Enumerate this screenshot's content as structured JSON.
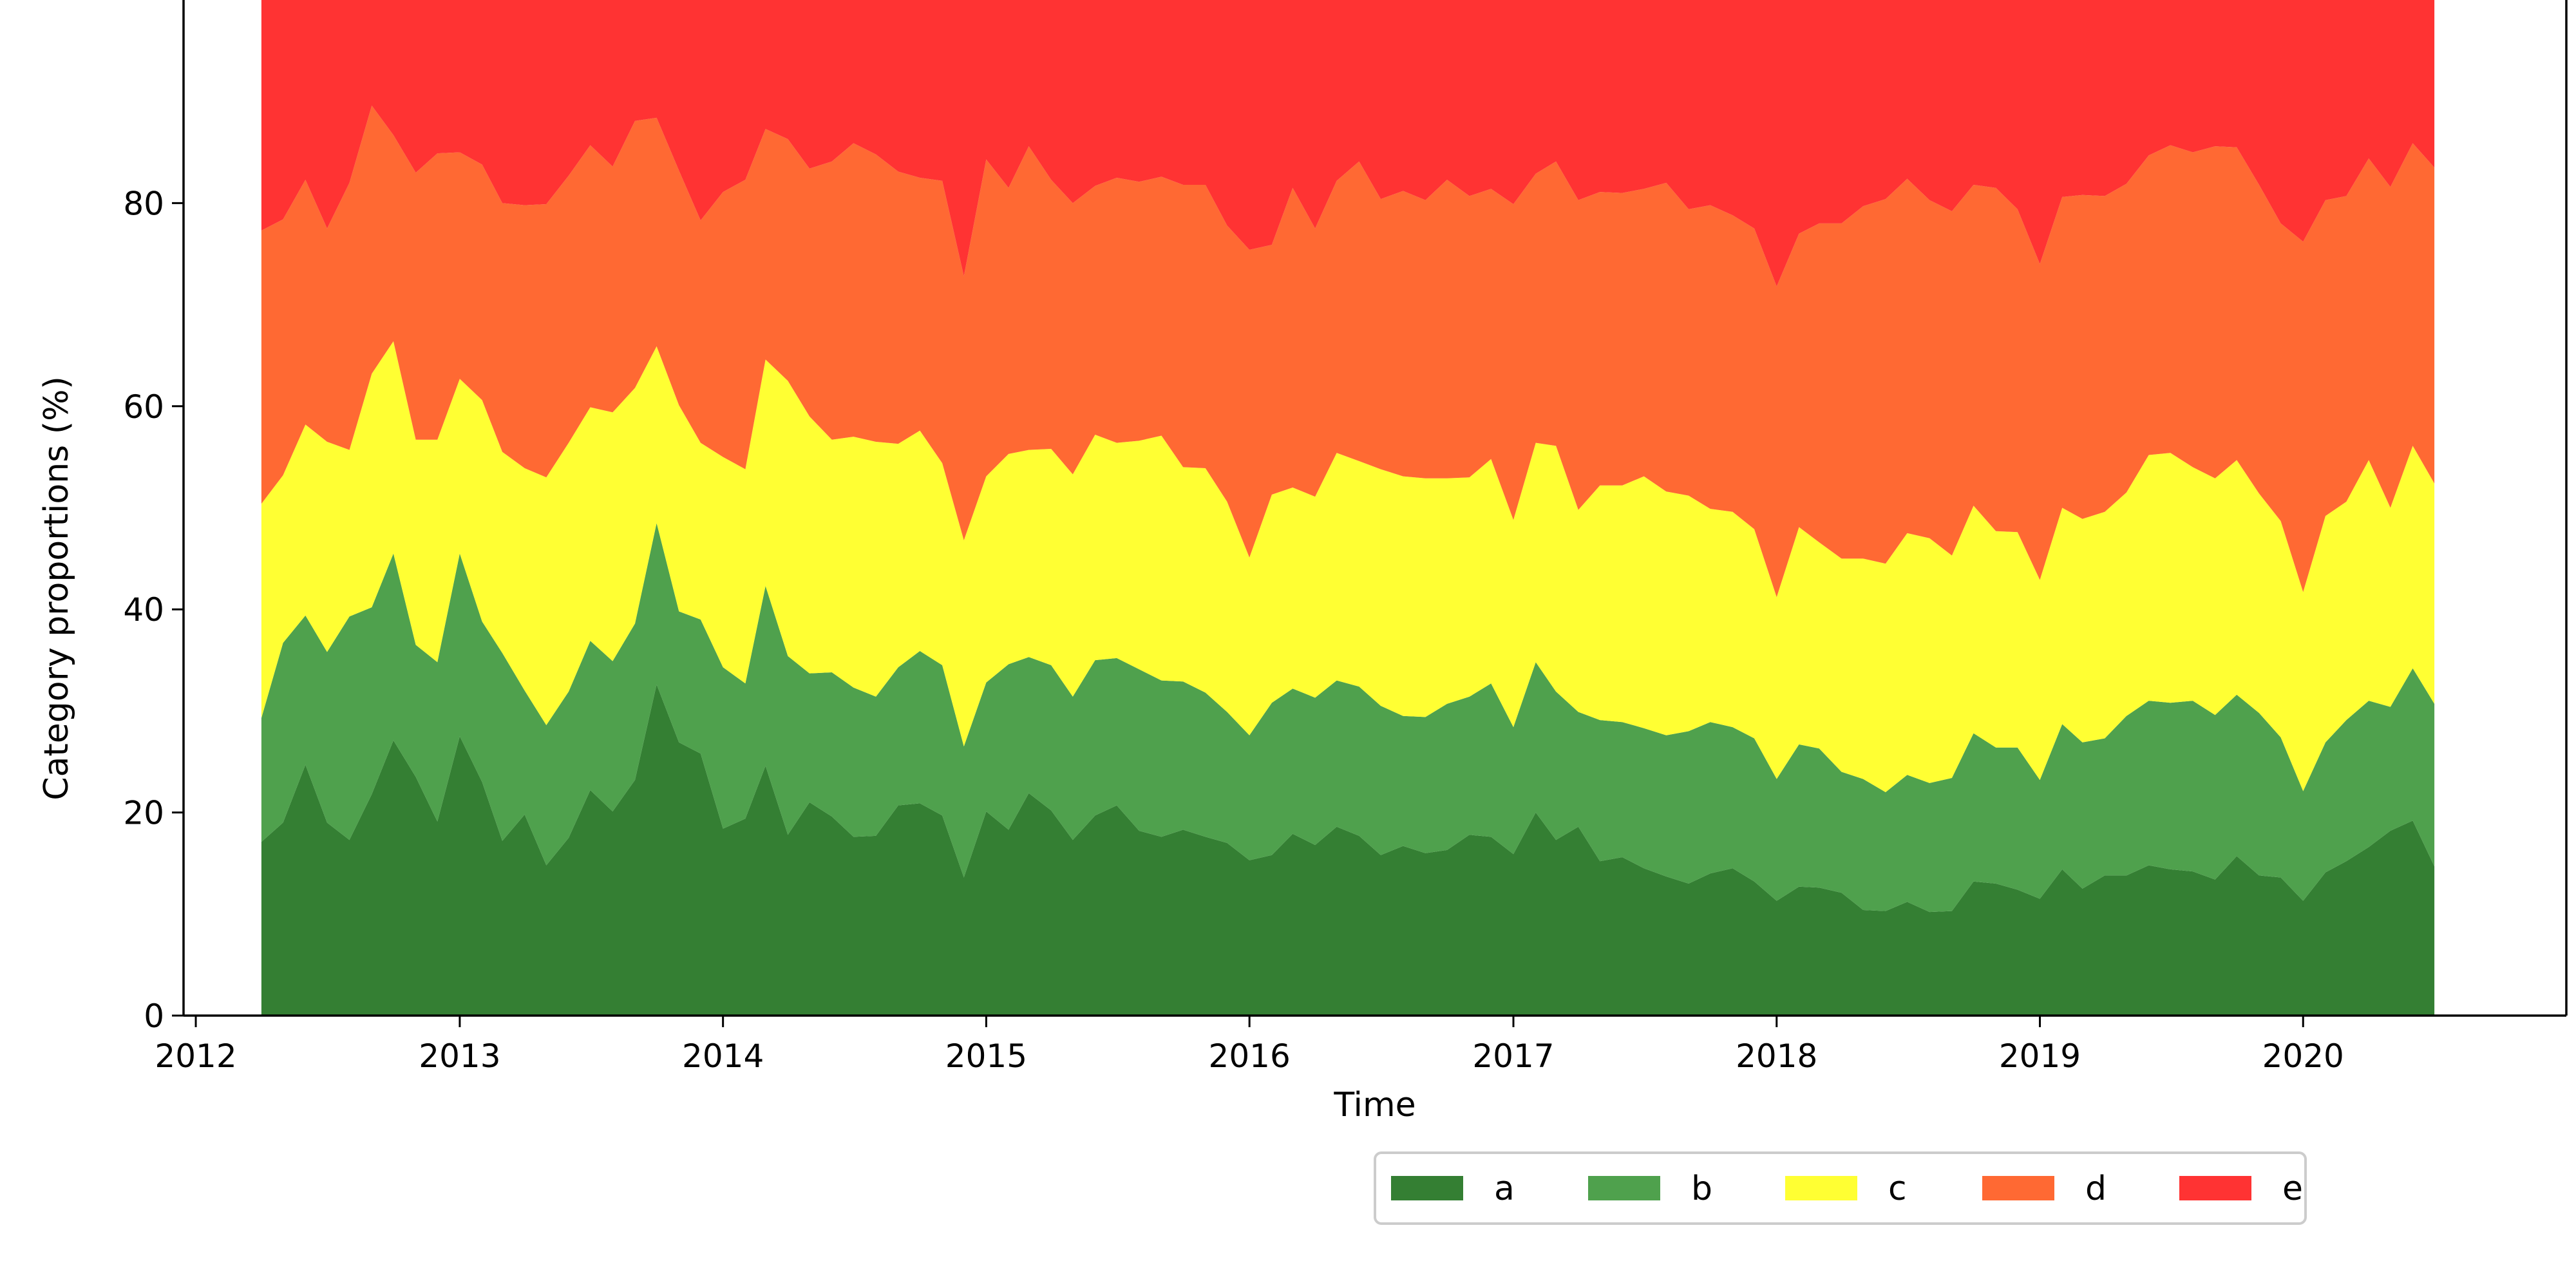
{
  "chart_data": {
    "type": "area",
    "stacked": true,
    "xlabel": "Time",
    "ylabel": "Category proportions (%)",
    "xlim": [
      "2011-12-15",
      "2020-12-31"
    ],
    "ylim": [
      0,
      100
    ],
    "x_ticks": [
      "2012",
      "2013",
      "2014",
      "2015",
      "2016",
      "2017",
      "2018",
      "2019",
      "2020"
    ],
    "y_ticks": [
      0,
      20,
      40,
      60,
      80
    ],
    "grid": false,
    "legend_position": "bottom-right, below axes",
    "x_start": "2012-04",
    "x_end": "2020-07",
    "x_frequency": "monthly",
    "series": [
      {
        "name": "a",
        "color": "#347f33",
        "values": [
          17.1,
          19.0,
          24.7,
          19.0,
          17.3,
          21.8,
          27.1,
          23.5,
          19.1,
          27.5,
          23.0,
          17.2,
          19.8,
          14.8,
          17.5,
          22.2,
          20.1,
          23.2,
          32.6,
          26.9,
          25.8,
          18.4,
          19.4,
          24.6,
          17.8,
          21.0,
          19.6,
          17.6,
          17.7,
          20.7,
          20.9,
          19.7,
          13.6,
          20.1,
          18.3,
          21.9,
          20.2,
          17.3,
          19.7,
          20.7,
          18.2,
          17.6,
          18.3,
          17.6,
          17.0,
          15.3,
          15.8,
          17.9,
          16.8,
          18.6,
          17.7,
          15.8,
          16.7,
          16.0,
          16.3,
          17.8,
          17.6,
          15.9,
          20.0,
          17.3,
          18.6,
          15.2,
          15.6,
          14.5,
          13.7,
          13.0,
          14.0,
          14.5,
          13.2,
          11.3,
          12.7,
          12.6,
          12.1,
          10.4,
          10.3,
          11.2,
          10.2,
          10.3,
          13.2,
          13.0,
          12.4,
          11.5,
          14.4,
          12.5,
          13.8,
          13.8,
          14.8,
          14.4,
          14.2,
          13.4,
          15.7,
          13.8,
          13.6,
          11.3,
          14.1,
          15.2,
          16.6,
          18.2,
          19.2,
          14.7
        ]
      },
      {
        "name": "b",
        "color": "#4fa14d",
        "values": [
          12.2,
          17.7,
          14.7,
          16.8,
          22.0,
          18.4,
          18.4,
          13.0,
          15.7,
          18.0,
          15.8,
          18.5,
          12.2,
          13.8,
          14.4,
          14.7,
          14.8,
          15.4,
          15.9,
          12.9,
          13.2,
          15.9,
          13.3,
          17.7,
          17.6,
          12.7,
          14.2,
          14.7,
          13.7,
          13.6,
          15.0,
          14.8,
          12.9,
          12.7,
          16.3,
          13.4,
          14.3,
          14.1,
          15.3,
          14.5,
          15.9,
          15.4,
          14.6,
          14.2,
          12.9,
          12.3,
          15.0,
          14.3,
          14.5,
          14.4,
          14.7,
          14.7,
          12.8,
          13.4,
          14.4,
          13.6,
          15.1,
          12.5,
          14.8,
          14.6,
          11.3,
          13.9,
          13.3,
          13.8,
          13.9,
          15.0,
          14.9,
          13.9,
          14.1,
          12.0,
          14.0,
          13.7,
          11.9,
          12.9,
          11.7,
          12.5,
          12.7,
          13.1,
          14.6,
          13.4,
          14.0,
          11.7,
          14.3,
          14.4,
          13.5,
          15.7,
          16.2,
          16.4,
          16.8,
          16.2,
          15.9,
          16.0,
          13.8,
          10.8,
          12.8,
          13.9,
          14.4,
          12.2,
          15.0,
          16.0
        ]
      },
      {
        "name": "c",
        "color": "#ffff33",
        "values": [
          21.1,
          16.5,
          18.8,
          20.7,
          16.4,
          23.0,
          20.9,
          20.2,
          21.9,
          17.2,
          21.8,
          19.8,
          21.9,
          24.4,
          24.5,
          23.0,
          24.5,
          23.2,
          17.4,
          20.3,
          17.4,
          20.7,
          21.1,
          22.3,
          27.1,
          25.3,
          22.9,
          24.7,
          25.1,
          22.0,
          21.7,
          19.9,
          20.3,
          20.3,
          20.7,
          20.4,
          21.3,
          21.9,
          22.2,
          21.2,
          22.5,
          24.1,
          21.1,
          22.1,
          20.7,
          17.5,
          20.5,
          19.8,
          19.8,
          22.4,
          22.2,
          23.3,
          23.6,
          23.5,
          22.2,
          21.6,
          22.1,
          20.4,
          21.6,
          24.2,
          19.9,
          23.1,
          23.3,
          24.8,
          24.0,
          23.2,
          21.0,
          21.2,
          20.6,
          17.9,
          21.4,
          20.3,
          21.0,
          21.7,
          22.5,
          23.8,
          24.1,
          21.9,
          22.4,
          21.3,
          21.2,
          19.7,
          21.3,
          22.0,
          22.3,
          22.0,
          24.2,
          24.6,
          23.0,
          23.3,
          23.1,
          21.6,
          21.3,
          19.6,
          22.3,
          21.5,
          23.7,
          19.6,
          21.9,
          21.7
        ]
      },
      {
        "name": "d",
        "color": "#ff6933",
        "values": [
          26.9,
          25.2,
          24.1,
          21.0,
          26.3,
          26.4,
          20.3,
          26.3,
          28.2,
          22.3,
          23.2,
          24.5,
          25.9,
          26.9,
          26.3,
          25.8,
          24.2,
          26.3,
          22.5,
          23.1,
          21.9,
          26.1,
          28.5,
          22.7,
          23.8,
          24.4,
          27.4,
          28.9,
          28.3,
          26.8,
          24.9,
          27.8,
          26.0,
          31.2,
          26.2,
          29.9,
          26.5,
          26.7,
          24.5,
          26.1,
          25.5,
          25.5,
          27.8,
          27.9,
          27.2,
          30.3,
          24.6,
          29.5,
          26.4,
          26.8,
          29.5,
          26.6,
          28.1,
          27.4,
          29.4,
          27.7,
          26.6,
          31.1,
          26.5,
          28.0,
          30.5,
          28.9,
          28.8,
          28.3,
          30.4,
          28.2,
          29.9,
          29.2,
          29.6,
          30.6,
          28.9,
          31.4,
          33.0,
          34.7,
          35.9,
          34.9,
          33.3,
          33.9,
          31.6,
          33.8,
          31.8,
          31.1,
          30.6,
          31.9,
          31.1,
          30.4,
          29.5,
          30.3,
          31.0,
          32.7,
          30.8,
          30.4,
          29.3,
          34.5,
          31.1,
          30.1,
          29.7,
          31.6,
          29.8,
          31.1
        ]
      },
      {
        "name": "e",
        "color": "#ff3333",
        "values": [
          22.7,
          21.6,
          17.7,
          22.5,
          18.0,
          10.4,
          13.3,
          17.0,
          15.1,
          15.0,
          16.2,
          20.0,
          20.2,
          20.1,
          17.3,
          14.3,
          16.4,
          11.9,
          11.6,
          16.8,
          21.7,
          18.9,
          17.7,
          12.7,
          13.7,
          16.6,
          15.9,
          14.1,
          15.2,
          16.9,
          17.5,
          17.8,
          27.2,
          15.7,
          18.5,
          14.4,
          17.7,
          20.0,
          18.3,
          17.5,
          17.9,
          17.4,
          18.2,
          18.2,
          22.2,
          24.6,
          24.1,
          18.5,
          22.5,
          17.8,
          15.9,
          19.6,
          18.8,
          19.7,
          17.7,
          19.3,
          18.6,
          20.1,
          17.1,
          15.9,
          19.7,
          18.9,
          19.0,
          18.6,
          18.0,
          20.6,
          20.2,
          21.2,
          22.5,
          28.2,
          23.0,
          22.0,
          22.0,
          20.3,
          19.6,
          17.6,
          19.7,
          20.8,
          18.2,
          18.5,
          20.6,
          26.0,
          19.4,
          19.2,
          19.3,
          18.1,
          15.3,
          14.3,
          15.0,
          14.4,
          14.5,
          18.2,
          22.0,
          23.8,
          19.7,
          19.3,
          15.6,
          18.4,
          14.1,
          16.5
        ]
      }
    ]
  }
}
